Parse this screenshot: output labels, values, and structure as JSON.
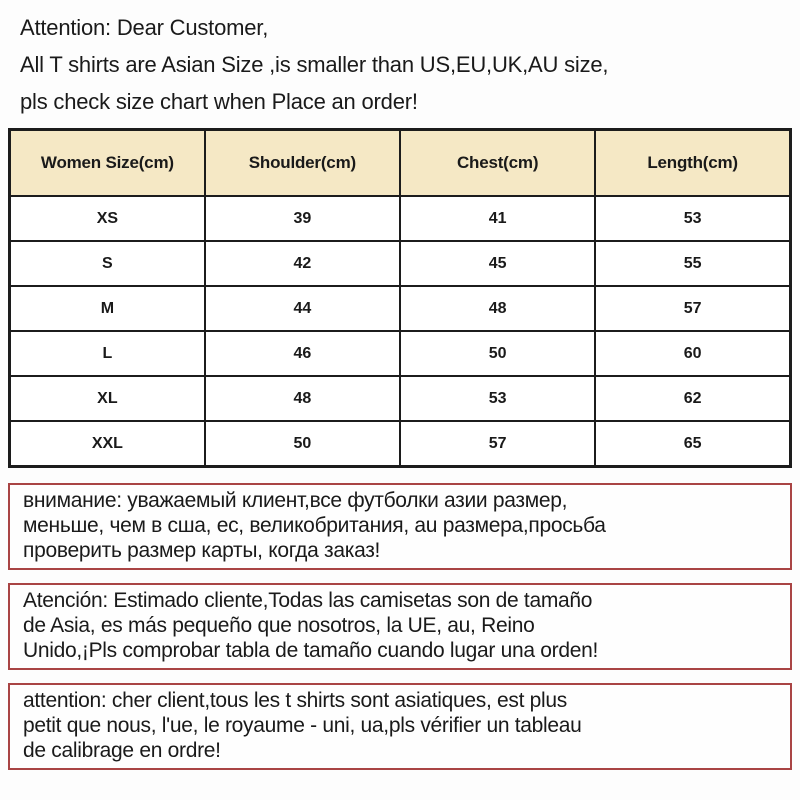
{
  "attention_header": {
    "text": "Attention: Dear Customer,\nAll T shirts are  Asian Size ,is smaller than US,EU,UK,AU size,\npls check size chart when Place an order!"
  },
  "size_table": {
    "headers": [
      "Women Size(cm)",
      "Shoulder(cm)",
      "Chest(cm)",
      "Length(cm)"
    ],
    "rows": [
      [
        "XS",
        "39",
        "41",
        "53"
      ],
      [
        "S",
        "42",
        "45",
        "55"
      ],
      [
        "M",
        "44",
        "48",
        "57"
      ],
      [
        "L",
        "46",
        "50",
        "60"
      ],
      [
        "XL",
        "48",
        "53",
        "62"
      ],
      [
        "XXL",
        "50",
        "57",
        "65"
      ]
    ]
  },
  "notices": {
    "russian": {
      "text": "внимание: уважаемый клиент,все футболки азии размер,\nменьше, чем в сша, ес, великобритания, au размера,просьба\nпроверить размер карты, когда заказ!"
    },
    "spanish": {
      "text": "Atención: Estimado cliente,Todas las camisetas son de tamaño\nde Asia, es más pequeño que nosotros, la UE, au, Reino\nUnido,¡Pls comprobar tabla de tamaño cuando lugar una orden!"
    },
    "french": {
      "text": "attention: cher client,tous les t shirts sont asiatiques, est plus\npetit que nous, l'ue, le royaume - uni, ua,pls vérifier un tableau\nde calibrage en ordre!"
    }
  },
  "colors": {
    "header_bg": "#f5e8c5",
    "table_border": "#1c1c1c",
    "notice_border": "#a94444",
    "text": "#1a1a1a",
    "background": "#fdfdfd"
  }
}
